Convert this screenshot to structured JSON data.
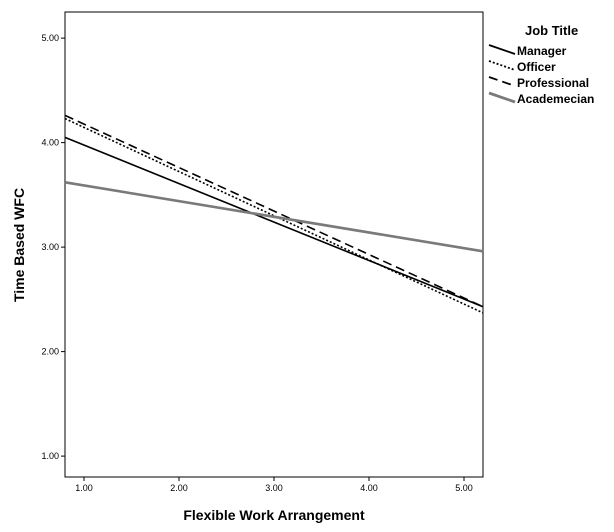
{
  "chart_data": {
    "type": "line",
    "title": "",
    "xlabel": "Flexible Work Arrangement",
    "ylabel": "Time Based WFC",
    "xlim": [
      0.8,
      5.2
    ],
    "ylim": [
      0.8,
      5.25
    ],
    "x_ticks": [
      "1.00",
      "2.00",
      "3.00",
      "4.00",
      "5.00"
    ],
    "y_ticks": [
      "1.00",
      "2.00",
      "3.00",
      "4.00",
      "5.00"
    ],
    "grid": false,
    "legend": {
      "title": "Job Title",
      "placement": "right"
    },
    "x": [
      0.8,
      5.2
    ],
    "series": [
      {
        "name": "Manager",
        "values": [
          4.05,
          2.43
        ],
        "color": "#000000",
        "dash": "solid"
      },
      {
        "name": "Officer",
        "values": [
          4.23,
          2.37
        ],
        "color": "#000000",
        "dash": "dotted"
      },
      {
        "name": "Professional",
        "values": [
          4.26,
          2.43
        ],
        "color": "#000000",
        "dash": "dashed"
      },
      {
        "name": "Academecian",
        "values": [
          3.62,
          2.96
        ],
        "color": "#7a7a7a",
        "dash": "solid"
      }
    ]
  }
}
